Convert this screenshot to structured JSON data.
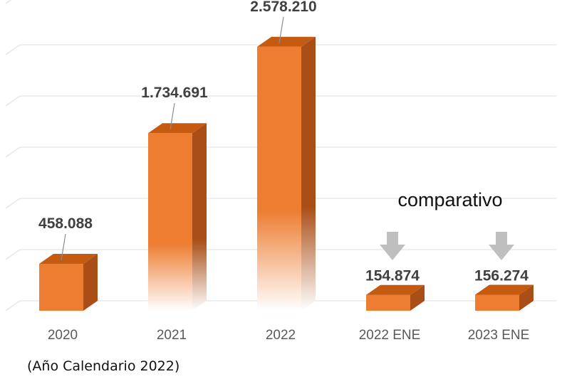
{
  "chart_data": {
    "type": "bar",
    "categories": [
      "2020",
      "2021",
      "2022",
      "2022 ENE",
      "2023 ENE"
    ],
    "values": [
      458088,
      1734691,
      2578210,
      154874,
      156274
    ],
    "value_labels": [
      "458.088",
      "1.734.691",
      "2.578.210",
      "154.874",
      "156.274"
    ],
    "ylim": [
      0,
      3000000
    ],
    "grid": true,
    "annotation": "comparativo",
    "annotated_categories": [
      "2022 ENE",
      "2023 ENE"
    ],
    "colors": {
      "bar_front": "#ED7D31",
      "bar_side": "#A94E17",
      "bar_top": "#C55A11",
      "arrow": "#BFBFBF",
      "grid": "#E8E8E8",
      "leader": "#8C8C8C"
    }
  },
  "footnote": "(Año Calendario 2022)"
}
